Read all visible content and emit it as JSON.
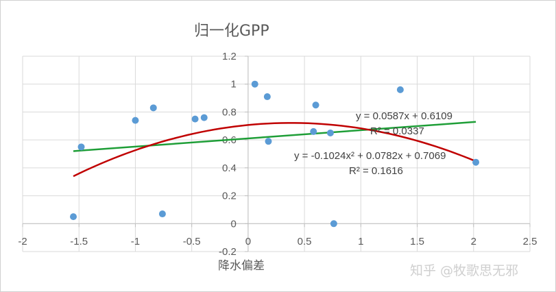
{
  "chart_data": {
    "type": "scatter",
    "title": "归一化GPP",
    "xlabel": "降水偏差",
    "ylabel": "",
    "xlim": [
      -2,
      2.5
    ],
    "ylim": [
      -0.2,
      1.2
    ],
    "x_ticks": [
      -2,
      -1.5,
      -1,
      -0.5,
      0,
      0.5,
      1,
      1.5,
      2,
      2.5
    ],
    "y_ticks": [
      -0.2,
      0,
      0.2,
      0.4,
      0.6,
      0.8,
      1,
      1.2
    ],
    "x_tick_labels": [
      "-2",
      "-1.5",
      "-1",
      "-0.5",
      "0",
      "0.5",
      "1",
      "1.5",
      "2",
      "2.5"
    ],
    "y_tick_labels": [
      "-0.2",
      "0",
      "0.2",
      "0.4",
      "0.6",
      "0.8",
      "1",
      "1.2"
    ],
    "grid": true,
    "points": {
      "x": [
        -1.55,
        -1.48,
        -1.0,
        -0.84,
        -0.76,
        -0.47,
        -0.39,
        0.06,
        0.17,
        0.18,
        0.58,
        0.6,
        0.73,
        0.76,
        1.35,
        2.02
      ],
      "y": [
        0.05,
        0.55,
        0.74,
        0.83,
        0.07,
        0.75,
        0.76,
        1.0,
        0.91,
        0.59,
        0.66,
        0.85,
        0.65,
        0.0,
        0.96,
        0.44
      ],
      "color": "#5B9BD5"
    },
    "trendlines": [
      {
        "kind": "linear",
        "color": "#1E9E37",
        "x_range": [
          -1.55,
          2.02
        ],
        "coefficients": {
          "a": 0.0587,
          "b": 0.6109
        },
        "equation": "y = 0.0587x + 0.6109",
        "r_squared": "R² = 0.0337"
      },
      {
        "kind": "polynomial",
        "color": "#C00000",
        "x_range": [
          -1.55,
          2.02
        ],
        "coefficients": {
          "a": -0.1024,
          "b": 0.0782,
          "c": 0.7069
        },
        "equation": "y = -0.1024x² + 0.0782x + 0.7069",
        "r_squared": "R² = 0.1616"
      }
    ]
  },
  "watermark": "知乎 @牧歌思无邪",
  "colors": {
    "grid": "#d9d9d9",
    "axis": "#bfbfbf",
    "text": "#595959"
  }
}
